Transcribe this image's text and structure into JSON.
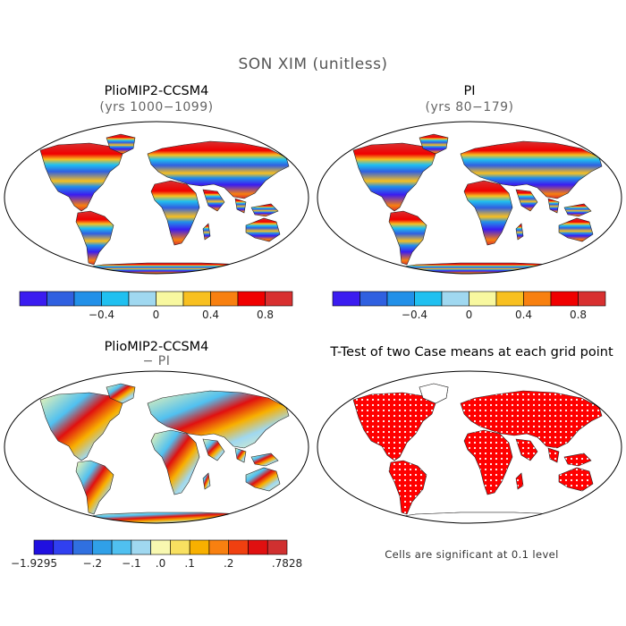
{
  "title": "SON XIM (unitless)",
  "panels": {
    "p1": {
      "title": "PlioMIP2-CCSM4",
      "subtitle": "(yrs 1000−1099)"
    },
    "p2": {
      "title": "PI",
      "subtitle": "(yrs 80−179)"
    },
    "p3": {
      "title": "PlioMIP2-CCSM4",
      "subtitle": "− PI"
    },
    "p4": {
      "title": "T-Test of two Case means at each grid point"
    }
  },
  "colorbar_abs": {
    "colors": [
      "#3b1cf0",
      "#3060e0",
      "#2290e8",
      "#20c0f0",
      "#a0d8f0",
      "#f8f8a0",
      "#f8c020",
      "#f88010",
      "#f00000",
      "#d83030"
    ],
    "labels": [
      "−0.4",
      "0",
      "0.4",
      "0.8"
    ]
  },
  "colorbar_diff": {
    "colors": [
      "#2010e0",
      "#3040f0",
      "#3070e0",
      "#30a0e8",
      "#50c0f0",
      "#a0d8f0",
      "#f8f8b0",
      "#f8e060",
      "#f8b000",
      "#f88010",
      "#f04010",
      "#e01010",
      "#d03030"
    ],
    "labels": [
      "−1.9295",
      "−.2",
      "−.1",
      ".0",
      ".1",
      ".2",
      ".7828"
    ]
  },
  "footnote": "Cells are significant at 0.1 level"
}
